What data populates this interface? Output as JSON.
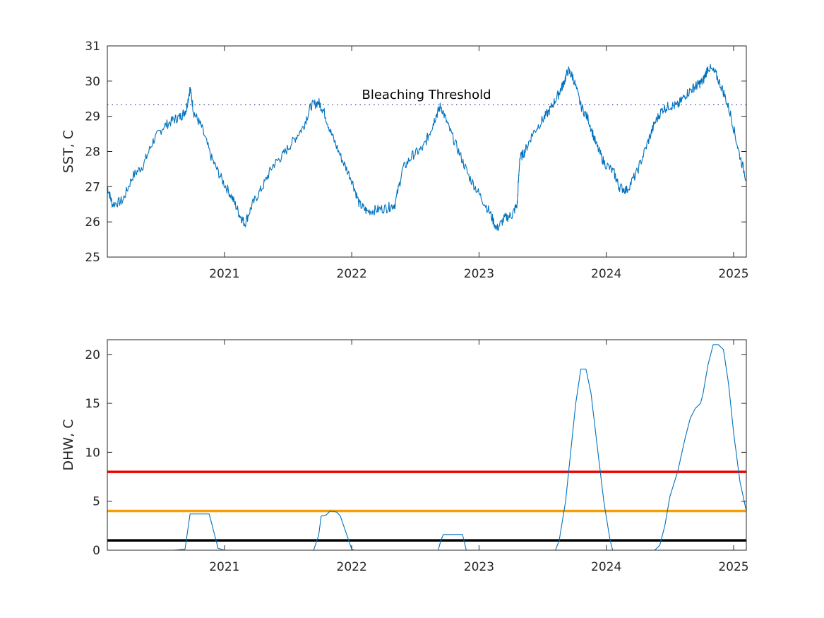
{
  "chart_data": [
    {
      "type": "line",
      "ylabel": "SST, C",
      "xlim": [
        2020.08,
        2025.1
      ],
      "ylim": [
        25,
        31
      ],
      "yticks": [
        25,
        26,
        27,
        28,
        29,
        30,
        31
      ],
      "xticks": [
        "2021",
        "2022",
        "2023",
        "2024",
        "2025"
      ],
      "grid": false,
      "colors": {
        "series": "#0072BD",
        "threshold": "#3a3aaa"
      },
      "threshold": {
        "label": "Bleaching Threshold",
        "value": 29.33,
        "style": "dotted"
      },
      "series": [
        {
          "x": [
            2020.08,
            2020.12,
            2020.2,
            2020.28,
            2020.36,
            2020.44,
            2020.52,
            2020.6,
            2020.66,
            2020.7,
            2020.73,
            2020.76,
            2020.82,
            2020.9,
            2020.98,
            2021.06,
            2021.12,
            2021.16,
            2021.22,
            2021.3,
            2021.38,
            2021.46,
            2021.54,
            2021.62,
            2021.68,
            2021.74,
            2021.78,
            2021.84,
            2021.92,
            2022.0,
            2022.06,
            2022.12,
            2022.2,
            2022.28,
            2022.34,
            2022.4,
            2022.48,
            2022.56,
            2022.62,
            2022.66,
            2022.7,
            2022.76,
            2022.84,
            2022.92,
            2023.0,
            2023.08,
            2023.14,
            2023.2,
            2023.26,
            2023.3,
            2023.32,
            2023.36,
            2023.42,
            2023.5,
            2023.56,
            2023.62,
            2023.66,
            2023.7,
            2023.74,
            2023.8,
            2023.86,
            2023.92,
            2023.98,
            2024.06,
            2024.1,
            2024.16,
            2024.24,
            2024.32,
            2024.38,
            2024.44,
            2024.5,
            2024.56,
            2024.62,
            2024.68,
            2024.72,
            2024.76,
            2024.8,
            2024.86,
            2024.92,
            2024.98,
            2025.04,
            2025.1
          ],
          "y": [
            27.0,
            26.5,
            26.6,
            27.3,
            27.6,
            28.3,
            28.7,
            28.9,
            29.0,
            29.2,
            29.8,
            29.1,
            28.7,
            27.8,
            27.2,
            26.7,
            26.2,
            25.95,
            26.5,
            27.0,
            27.6,
            27.9,
            28.3,
            28.7,
            29.3,
            29.4,
            29.15,
            28.5,
            27.8,
            27.2,
            26.5,
            26.3,
            26.35,
            26.4,
            26.5,
            27.5,
            27.9,
            28.1,
            28.6,
            29.0,
            29.3,
            28.7,
            28.0,
            27.3,
            26.8,
            26.3,
            25.8,
            26.1,
            26.2,
            26.5,
            27.8,
            28.0,
            28.5,
            28.9,
            29.2,
            29.6,
            29.9,
            30.3,
            30.1,
            29.3,
            28.9,
            28.2,
            27.7,
            27.4,
            27.0,
            26.9,
            27.4,
            28.2,
            28.8,
            29.2,
            29.3,
            29.3,
            29.6,
            29.8,
            29.9,
            30.0,
            30.4,
            30.2,
            29.7,
            29.0,
            28.0,
            27.2
          ]
        }
      ]
    },
    {
      "type": "line",
      "ylabel": "DHW, C",
      "xlim": [
        2020.08,
        2025.1
      ],
      "ylim": [
        0,
        21.5
      ],
      "yticks": [
        0,
        5,
        10,
        15,
        20
      ],
      "xticks": [
        "2021",
        "2022",
        "2023",
        "2024",
        "2025"
      ],
      "grid": false,
      "colors": {
        "series": "#0072BD",
        "alert2": "#ee0000",
        "alert1": "#f5a000",
        "watch": "#000000"
      },
      "reference_lines": [
        {
          "value": 8,
          "color": "#ee0000"
        },
        {
          "value": 4,
          "color": "#f5a000"
        },
        {
          "value": 1,
          "color": "#000000"
        }
      ],
      "series": [
        {
          "x": [
            2020.08,
            2020.6,
            2020.69,
            2020.73,
            2020.8,
            2020.88,
            2020.95,
            2021.0,
            2021.7,
            2021.74,
            2021.76,
            2021.8,
            2021.83,
            2021.88,
            2021.91,
            2021.95,
            2022.0,
            2022.02,
            2022.68,
            2022.7,
            2022.72,
            2022.87,
            2022.9,
            2023.6,
            2023.63,
            2023.68,
            2023.72,
            2023.76,
            2023.8,
            2023.84,
            2023.88,
            2023.93,
            2023.98,
            2024.03,
            2024.05,
            2024.38,
            2024.42,
            2024.46,
            2024.5,
            2024.56,
            2024.62,
            2024.66,
            2024.7,
            2024.74,
            2024.76,
            2024.8,
            2024.84,
            2024.88,
            2024.92,
            2024.96,
            2025.0,
            2025.05,
            2025.1
          ],
          "y": [
            0,
            0,
            0.1,
            3.7,
            3.7,
            3.7,
            0.2,
            0,
            0,
            1.5,
            3.5,
            3.6,
            4.0,
            3.9,
            3.5,
            2.0,
            0.1,
            0,
            0,
            1.0,
            1.6,
            1.6,
            0,
            0,
            1.0,
            5.0,
            10.0,
            15.0,
            18.5,
            18.5,
            16.0,
            10.5,
            5.0,
            1.0,
            0,
            0,
            0.5,
            2.5,
            5.5,
            8.0,
            11.5,
            13.5,
            14.5,
            15.0,
            16.0,
            19.0,
            21.0,
            21.0,
            20.5,
            17.0,
            12.0,
            7.0,
            4.0
          ]
        }
      ]
    }
  ]
}
